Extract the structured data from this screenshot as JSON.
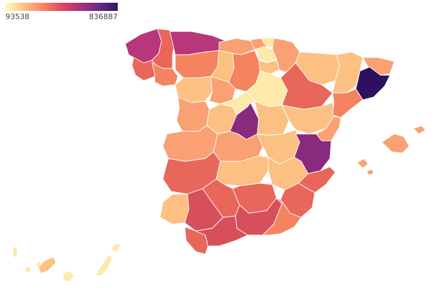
{
  "legend": {
    "min_label": "93538",
    "max_label": "836887",
    "min_value": 93538,
    "max_value": 836887,
    "scale_colors": [
      "#fcfdbf",
      "#fcc084",
      "#f98365",
      "#e0475f",
      "#a8327d",
      "#6b2a82",
      "#2e1560"
    ]
  },
  "palette": {
    "p1": "#fde9a9",
    "p2": "#fcc083",
    "p3": "#f9a172",
    "p4": "#f4845f",
    "p5": "#e8675a",
    "p6": "#d84f5c",
    "p7": "#b8367a",
    "p8": "#8a2a7f",
    "p9": "#2d1160"
  },
  "regions": [
    {
      "id": "a-coruna",
      "color": "p7"
    },
    {
      "id": "lugo",
      "color": "p5"
    },
    {
      "id": "pontevedra",
      "color": "p5"
    },
    {
      "id": "ourense",
      "color": "p4"
    },
    {
      "id": "asturias",
      "color": "p7"
    },
    {
      "id": "cantabria",
      "color": "p3"
    },
    {
      "id": "bizkaia",
      "color": "p3"
    },
    {
      "id": "gipuzkoa",
      "color": "p1"
    },
    {
      "id": "araba",
      "color": "p1"
    },
    {
      "id": "navarra",
      "color": "p3"
    },
    {
      "id": "la-rioja",
      "color": "p2"
    },
    {
      "id": "leon",
      "color": "p4"
    },
    {
      "id": "palencia",
      "color": "p2"
    },
    {
      "id": "burgos",
      "color": "p4"
    },
    {
      "id": "zamora",
      "color": "p2"
    },
    {
      "id": "valladolid",
      "color": "p3"
    },
    {
      "id": "soria",
      "color": "p1"
    },
    {
      "id": "huesca",
      "color": "p2"
    },
    {
      "id": "zaragoza",
      "color": "p5"
    },
    {
      "id": "teruel",
      "color": "p2"
    },
    {
      "id": "lleida",
      "color": "p2"
    },
    {
      "id": "girona",
      "color": "p3"
    },
    {
      "id": "barcelona",
      "color": "p9"
    },
    {
      "id": "tarragona",
      "color": "p4"
    },
    {
      "id": "salamanca",
      "color": "p3"
    },
    {
      "id": "avila",
      "color": "p2"
    },
    {
      "id": "segovia",
      "color": "p1"
    },
    {
      "id": "madrid",
      "color": "p8"
    },
    {
      "id": "guadalajara",
      "color": "p2"
    },
    {
      "id": "cuenca",
      "color": "p2"
    },
    {
      "id": "castellon",
      "color": "p3"
    },
    {
      "id": "valencia",
      "color": "p8"
    },
    {
      "id": "caceres",
      "color": "p3"
    },
    {
      "id": "toledo",
      "color": "p3"
    },
    {
      "id": "badajoz",
      "color": "p5"
    },
    {
      "id": "ciudad-real",
      "color": "p2"
    },
    {
      "id": "albacete",
      "color": "p2"
    },
    {
      "id": "alicante",
      "color": "p5"
    },
    {
      "id": "huelva",
      "color": "p2"
    },
    {
      "id": "sevilla",
      "color": "p6"
    },
    {
      "id": "cordoba",
      "color": "p5"
    },
    {
      "id": "jaen",
      "color": "p5"
    },
    {
      "id": "granada",
      "color": "p6"
    },
    {
      "id": "murcia",
      "color": "p5"
    },
    {
      "id": "almeria",
      "color": "p4"
    },
    {
      "id": "cadiz",
      "color": "p5"
    },
    {
      "id": "malaga",
      "color": "p6"
    },
    {
      "id": "mallorca",
      "color": "p3"
    },
    {
      "id": "menorca",
      "color": "p3"
    },
    {
      "id": "ibiza",
      "color": "p3"
    },
    {
      "id": "formentera",
      "color": "p3"
    },
    {
      "id": "la-palma",
      "color": "p1"
    },
    {
      "id": "el-hierro",
      "color": "p1"
    },
    {
      "id": "la-gomera",
      "color": "p1"
    },
    {
      "id": "tenerife",
      "color": "p2"
    },
    {
      "id": "gran-canaria",
      "color": "p1"
    },
    {
      "id": "fuerteventura",
      "color": "p1"
    },
    {
      "id": "lanzarote",
      "color": "p1"
    }
  ]
}
